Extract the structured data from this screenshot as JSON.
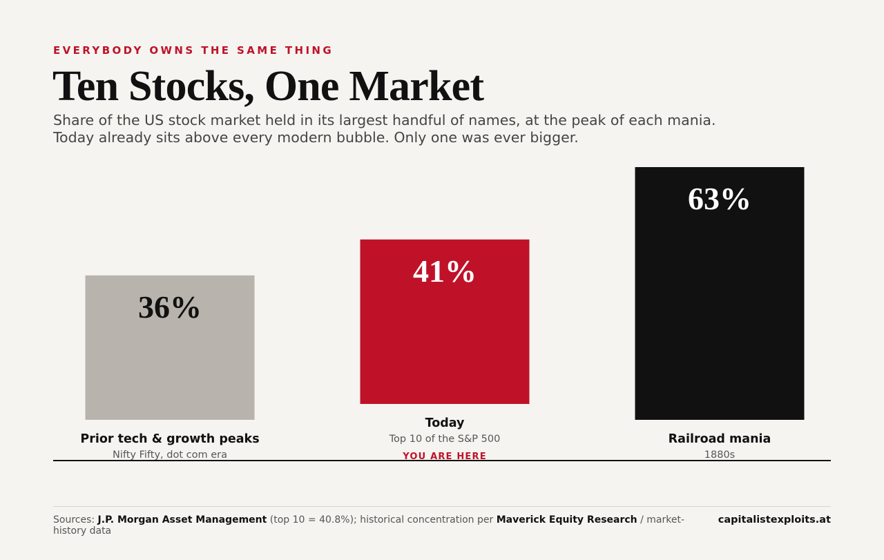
{
  "header": {
    "kicker": "EVERYBODY OWNS THE SAME THING",
    "title": "Ten Stocks, One Market",
    "subtitle_line1": "Share of the US stock market held in its largest handful of names, at the peak of each mania.",
    "subtitle_line2": "Today already sits above every modern bubble. Only one was ever bigger."
  },
  "chart_data": {
    "type": "bar",
    "unit": "%",
    "ylim": [
      0,
      63
    ],
    "grid": false,
    "categories": [
      "Prior tech & growth peaks",
      "Today",
      "Railroad mania"
    ],
    "bars": [
      {
        "label": "Prior tech & growth peaks",
        "sublabel": "Nifty Fifty, dot com era",
        "value": 36,
        "value_label": "36%",
        "color": "#b8b3ac",
        "text_color": "#111111",
        "tag": ""
      },
      {
        "label": "Today",
        "sublabel": "Top 10 of the S&P 500",
        "value": 41,
        "value_label": "41%",
        "color": "#bf1229",
        "text_color": "#ffffff",
        "tag": "YOU ARE HERE"
      },
      {
        "label": "Railroad mania",
        "sublabel": "1880s",
        "value": 63,
        "value_label": "63%",
        "color": "#111111",
        "text_color": "#ffffff",
        "tag": ""
      }
    ]
  },
  "footer": {
    "sources_prefix": "Sources: ",
    "source1": "J.P. Morgan Asset Management",
    "source1_note": " (top 10 = 40.8%); historical concentration per ",
    "source2": "Maverick Equity Research",
    "source2_note": " / market-history data",
    "brand": "capitalistexploits.at"
  },
  "colors": {
    "accent": "#bf1229",
    "background": "#f5f4f0",
    "text": "#111111"
  }
}
